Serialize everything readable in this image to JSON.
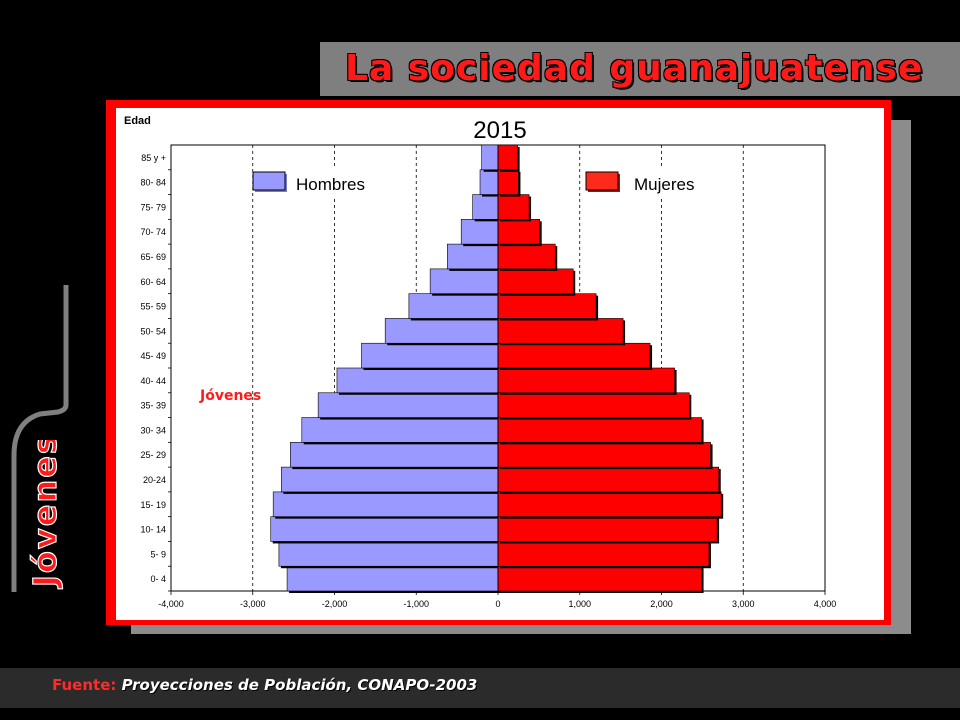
{
  "slide": {
    "title": "La sociedad guanajuatense",
    "side_label": "Jóvenes",
    "footer_prefix": "Fuente:",
    "footer_source": "Proyecciones de Población, CONAPO-2003"
  },
  "colors": {
    "hombres": "#9999ff",
    "mujeres": "#ff0000",
    "accent": "#ff1a1a"
  },
  "chart_data": {
    "type": "bar",
    "orientation": "horizontal-pyramid",
    "title": "2015",
    "ylabel": "Edad",
    "annotation": "Jóvenes",
    "categories": [
      "0- 4",
      "5- 9",
      "10- 14",
      "15- 19",
      "20-24",
      "25- 29",
      "30- 34",
      "35- 39",
      "40- 44",
      "45- 49",
      "50- 54",
      "55- 59",
      "60- 64",
      "65- 69",
      "70- 74",
      "75- 79",
      "80- 84",
      "85 y +"
    ],
    "series": [
      {
        "name": "Hombres",
        "values": [
          -2580,
          -2680,
          -2780,
          -2750,
          -2650,
          -2540,
          -2400,
          -2200,
          -1970,
          -1670,
          -1380,
          -1090,
          -830,
          -620,
          -450,
          -310,
          -220,
          -200
        ]
      },
      {
        "name": "Mujeres",
        "values": [
          2490,
          2580,
          2680,
          2730,
          2700,
          2600,
          2490,
          2340,
          2160,
          1860,
          1530,
          1200,
          920,
          700,
          510,
          380,
          250,
          240
        ]
      }
    ],
    "xlim": [
      -4000,
      4000
    ],
    "xticks": [
      "-4,000",
      "-3,000",
      "-2,000",
      "-1,000",
      "0",
      "1,000",
      "2,000",
      "3,000",
      "4,000"
    ],
    "xtick_values": [
      -4000,
      -3000,
      -2000,
      -1000,
      0,
      1000,
      2000,
      3000,
      4000
    ],
    "grid": "vertical-dashed",
    "legend": "top"
  }
}
